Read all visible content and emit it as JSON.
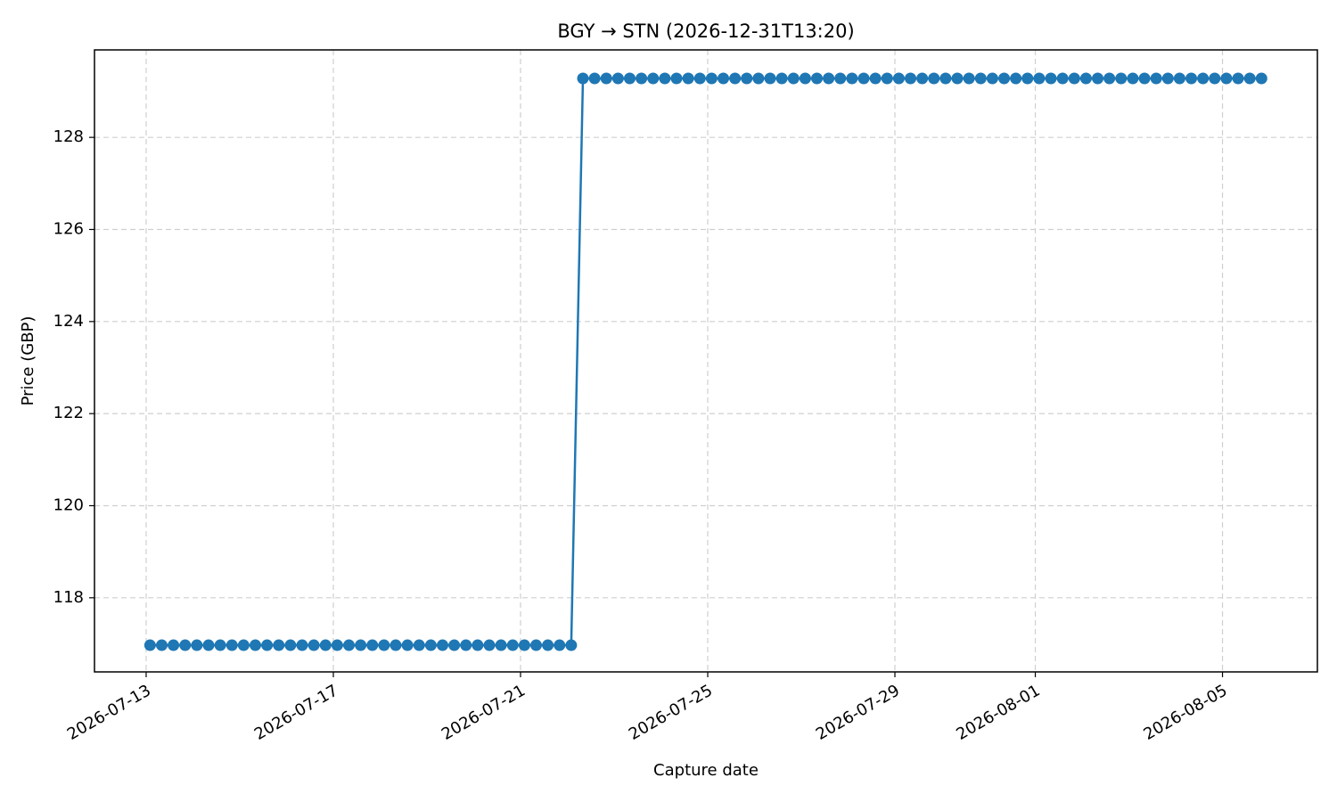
{
  "chart_data": {
    "type": "line",
    "title": "BGY → STN (2026-12-31T13:20)",
    "x_label": "Capture date",
    "y_label": "Price (GBP)",
    "x": [
      "2026-07-13T02:00",
      "2026-07-13T08:00",
      "2026-07-13T14:00",
      "2026-07-13T20:00",
      "2026-07-14T02:00",
      "2026-07-14T08:00",
      "2026-07-14T14:00",
      "2026-07-14T20:00",
      "2026-07-15T02:00",
      "2026-07-15T08:00",
      "2026-07-15T14:00",
      "2026-07-15T20:00",
      "2026-07-16T02:00",
      "2026-07-16T08:00",
      "2026-07-16T14:00",
      "2026-07-16T20:00",
      "2026-07-17T02:00",
      "2026-07-17T08:00",
      "2026-07-17T14:00",
      "2026-07-17T20:00",
      "2026-07-18T02:00",
      "2026-07-18T08:00",
      "2026-07-18T14:00",
      "2026-07-18T20:00",
      "2026-07-19T02:00",
      "2026-07-19T08:00",
      "2026-07-19T14:00",
      "2026-07-19T20:00",
      "2026-07-20T02:00",
      "2026-07-20T08:00",
      "2026-07-20T14:00",
      "2026-07-20T20:00",
      "2026-07-21T02:00",
      "2026-07-21T08:00",
      "2026-07-21T14:00",
      "2026-07-21T20:00",
      "2026-07-22T02:00",
      "2026-07-22T08:00",
      "2026-07-22T14:00",
      "2026-07-22T20:00",
      "2026-07-23T02:00",
      "2026-07-23T08:00",
      "2026-07-23T14:00",
      "2026-07-23T20:00",
      "2026-07-24T02:00",
      "2026-07-24T08:00",
      "2026-07-24T14:00",
      "2026-07-24T20:00",
      "2026-07-25T02:00",
      "2026-07-25T08:00",
      "2026-07-25T14:00",
      "2026-07-25T20:00",
      "2026-07-26T02:00",
      "2026-07-26T08:00",
      "2026-07-26T14:00",
      "2026-07-26T20:00",
      "2026-07-27T02:00",
      "2026-07-27T08:00",
      "2026-07-27T14:00",
      "2026-07-27T20:00",
      "2026-07-28T02:00",
      "2026-07-28T08:00",
      "2026-07-28T14:00",
      "2026-07-28T20:00",
      "2026-07-29T02:00",
      "2026-07-29T08:00",
      "2026-07-29T14:00",
      "2026-07-29T20:00",
      "2026-07-30T02:00",
      "2026-07-30T08:00",
      "2026-07-30T14:00",
      "2026-07-30T20:00",
      "2026-07-31T02:00",
      "2026-07-31T08:00",
      "2026-07-31T14:00",
      "2026-07-31T20:00",
      "2026-08-01T02:00",
      "2026-08-01T08:00",
      "2026-08-01T14:00",
      "2026-08-01T20:00",
      "2026-08-02T02:00",
      "2026-08-02T08:00",
      "2026-08-02T14:00",
      "2026-08-02T20:00",
      "2026-08-03T02:00",
      "2026-08-03T08:00",
      "2026-08-03T14:00",
      "2026-08-03T20:00",
      "2026-08-04T02:00",
      "2026-08-04T08:00",
      "2026-08-04T14:00",
      "2026-08-04T20:00",
      "2026-08-05T02:00",
      "2026-08-05T08:00",
      "2026-08-05T14:00",
      "2026-08-05T20:00"
    ],
    "values": [
      116.97,
      116.97,
      116.97,
      116.97,
      116.97,
      116.97,
      116.97,
      116.97,
      116.97,
      116.97,
      116.97,
      116.97,
      116.97,
      116.97,
      116.97,
      116.97,
      116.97,
      116.97,
      116.97,
      116.97,
      116.97,
      116.97,
      116.97,
      116.97,
      116.97,
      116.97,
      116.97,
      116.97,
      116.97,
      116.97,
      116.97,
      116.97,
      116.97,
      116.97,
      116.97,
      116.97,
      116.97,
      129.28,
      129.28,
      129.28,
      129.28,
      129.28,
      129.28,
      129.28,
      129.28,
      129.28,
      129.28,
      129.28,
      129.28,
      129.28,
      129.28,
      129.28,
      129.28,
      129.28,
      129.28,
      129.28,
      129.28,
      129.28,
      129.28,
      129.28,
      129.28,
      129.28,
      129.28,
      129.28,
      129.28,
      129.28,
      129.28,
      129.28,
      129.28,
      129.28,
      129.28,
      129.28,
      129.28,
      129.28,
      129.28,
      129.28,
      129.28,
      129.28,
      129.28,
      129.28,
      129.28,
      129.28,
      129.28,
      129.28,
      129.28,
      129.28,
      129.28,
      129.28,
      129.28,
      129.28,
      129.28,
      129.28,
      129.28,
      129.28,
      129.28,
      129.28
    ],
    "color": "#1f77b4",
    "xlim": [
      "2026-07-11T21:30",
      "2026-08-07T00:40"
    ],
    "xticks": [
      "2026-07-13",
      "2026-07-17",
      "2026-07-21",
      "2026-07-25",
      "2026-07-29",
      "2026-08-01",
      "2026-08-05"
    ],
    "ylim": [
      116.39,
      129.9
    ],
    "yticks": [
      118,
      120,
      122,
      124,
      126,
      128
    ],
    "grid": true
  }
}
